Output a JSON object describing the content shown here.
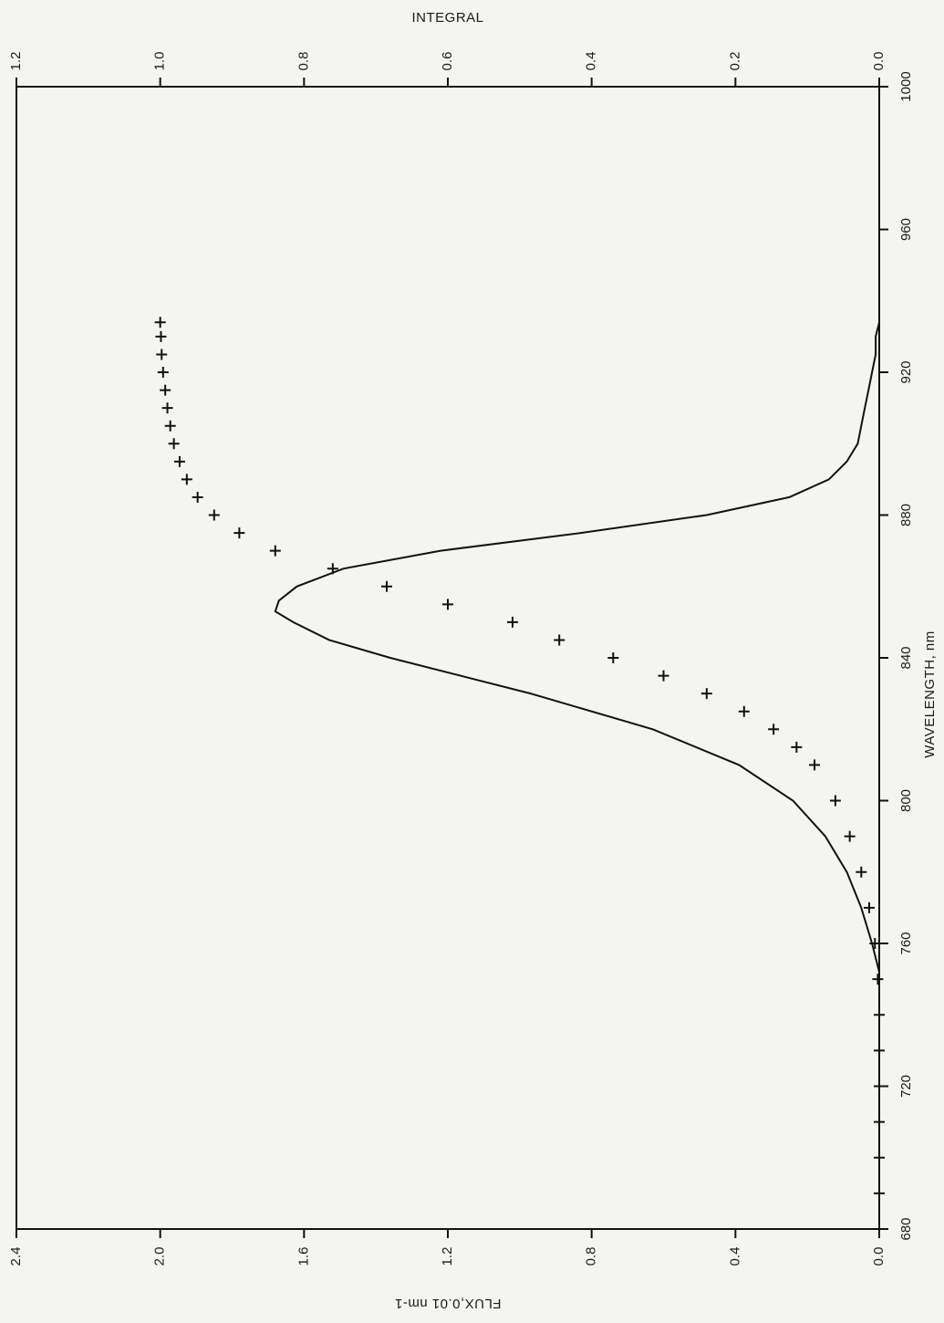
{
  "chart_data": {
    "type": "line",
    "orientation": "rotated-90-clockwise",
    "xlabel": "WAVELENGTH, nm",
    "ylabel_left": "FLUX,0.01 nm-1",
    "ylabel_right": "INTEGRAL",
    "x_ticks": [
      "680",
      "720",
      "760",
      "800",
      "840",
      "880",
      "920",
      "960",
      "1000"
    ],
    "y_left_ticks": [
      "0.0",
      "0.4",
      "0.8",
      "1.2",
      "1.6",
      "2.0",
      "2.4"
    ],
    "y_right_ticks": [
      "0.0",
      "0.2",
      "0.4",
      "0.6",
      "0.8",
      "1.0",
      "1.2"
    ],
    "xlim": [
      680,
      1000
    ],
    "ylim_left": [
      0,
      2.4
    ],
    "ylim_right": [
      0,
      1.2
    ],
    "grid": false,
    "series": [
      {
        "style": "solid line",
        "axis": "left",
        "x": [
          752,
          760,
          770,
          780,
          790,
          800,
          810,
          820,
          830,
          840,
          845,
          850,
          853,
          856,
          860,
          865,
          870,
          875,
          880,
          885,
          890,
          895,
          900,
          905,
          910,
          915,
          920,
          925,
          930,
          934
        ],
        "y": [
          0.0,
          0.02,
          0.05,
          0.09,
          0.15,
          0.24,
          0.39,
          0.63,
          0.97,
          1.36,
          1.53,
          1.63,
          1.68,
          1.67,
          1.62,
          1.49,
          1.22,
          0.83,
          0.48,
          0.25,
          0.14,
          0.09,
          0.06,
          0.05,
          0.04,
          0.03,
          0.02,
          0.01,
          0.01,
          0.0
        ]
      },
      {
        "style": "plus markers",
        "axis": "right",
        "x": [
          690,
          700,
          710,
          720,
          730,
          740,
          750,
          760,
          770,
          780,
          790,
          800,
          810,
          815,
          820,
          825,
          830,
          835,
          840,
          845,
          850,
          855,
          860,
          865,
          870,
          875,
          880,
          885,
          890,
          895,
          900,
          905,
          910,
          915,
          920,
          925,
          930,
          934
        ],
        "y": [
          0.0,
          0.0,
          0.0,
          0.0,
          0.0,
          0.0,
          0.002,
          0.006,
          0.014,
          0.025,
          0.041,
          0.061,
          0.09,
          0.115,
          0.147,
          0.188,
          0.24,
          0.3,
          0.37,
          0.445,
          0.51,
          0.6,
          0.685,
          0.76,
          0.84,
          0.89,
          0.925,
          0.948,
          0.963,
          0.973,
          0.981,
          0.986,
          0.99,
          0.993,
          0.996,
          0.998,
          0.999,
          1.0
        ]
      }
    ]
  }
}
